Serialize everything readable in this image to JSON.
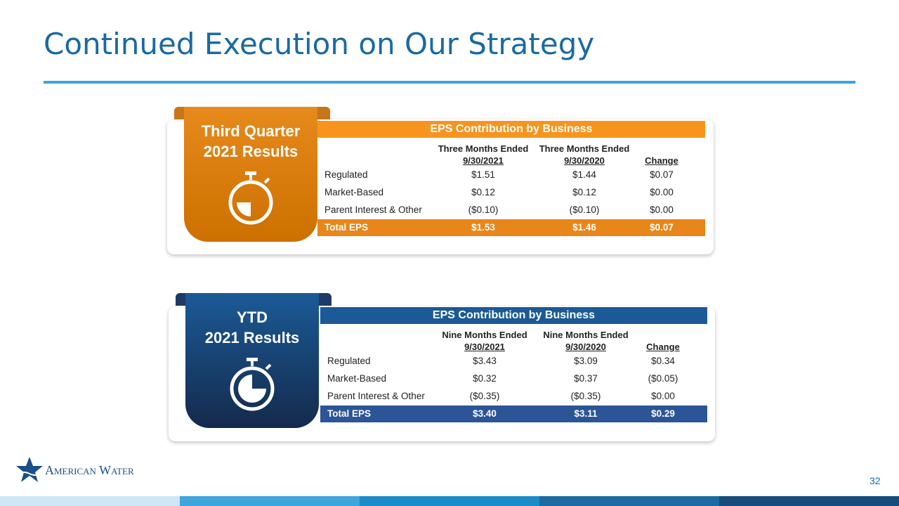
{
  "header": {
    "title": "Continued Execution on Our Strategy"
  },
  "sections": [
    {
      "tab_label": [
        "Third Quarter",
        "2021 Results"
      ],
      "table": {
        "title": "EPS Contribution by Business",
        "columns": [
          [
            "Three Months Ended",
            "9/30/2021"
          ],
          [
            "Three Months Ended",
            "9/30/2020"
          ],
          [
            "Change"
          ]
        ],
        "rows": [
          [
            "Regulated",
            "$1.51",
            "$1.44",
            "$0.07"
          ],
          [
            "Market-Based",
            "$0.12",
            "$0.12",
            "$0.00"
          ],
          [
            "Parent Interest & Other",
            "($0.10)",
            "($0.10)",
            "$0.00"
          ]
        ],
        "total": [
          "Total EPS",
          "$1.53",
          "$1.46",
          "$0.07"
        ]
      }
    },
    {
      "tab_label": [
        "YTD",
        "2021 Results"
      ],
      "table": {
        "title": "EPS Contribution by Business",
        "columns": [
          [
            "Nine Months Ended",
            "9/30/2021"
          ],
          [
            "Nine Months Ended",
            "9/30/2020"
          ],
          [
            "Change"
          ]
        ],
        "rows": [
          [
            "Regulated",
            "$3.43",
            "$3.09",
            "$0.34"
          ],
          [
            "Market-Based",
            "$0.32",
            "$0.37",
            "($0.05)"
          ],
          [
            "Parent Interest & Other",
            "($0.35)",
            "($0.35)",
            "$0.00"
          ]
        ],
        "total": [
          "Total EPS",
          "$3.40",
          "$3.11",
          "$0.29"
        ]
      }
    }
  ],
  "footer": {
    "logo": "American Water",
    "page_number": "32"
  }
}
